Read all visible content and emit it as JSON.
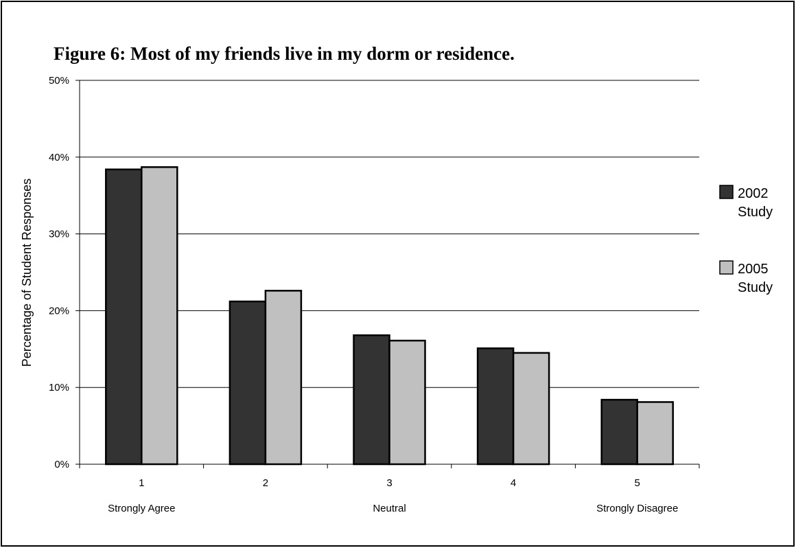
{
  "chart_data": {
    "type": "bar",
    "title": "Figure 6: Most of my friends live in my dorm or residence.",
    "ylabel": "Percentage of Student Responses",
    "xlabel": "",
    "categories": [
      "1",
      "2",
      "3",
      "4",
      "5"
    ],
    "category_sublabels": [
      "Strongly Agree",
      "",
      "Neutral",
      "",
      "Strongly Disagree"
    ],
    "ylim": [
      0,
      50
    ],
    "yticks": [
      "0%",
      "10%",
      "20%",
      "30%",
      "40%",
      "50%"
    ],
    "ytick_values": [
      0,
      10,
      20,
      30,
      40,
      50
    ],
    "grid": true,
    "legend_position": "right",
    "series": [
      {
        "name_lines": [
          "2002",
          "Study"
        ],
        "color": "#333333",
        "values": [
          38.4,
          21.2,
          16.8,
          15.1,
          8.4
        ]
      },
      {
        "name_lines": [
          "2005",
          "Study"
        ],
        "color": "#c0c0c0",
        "values": [
          38.7,
          22.6,
          16.1,
          14.5,
          8.1
        ]
      }
    ]
  }
}
